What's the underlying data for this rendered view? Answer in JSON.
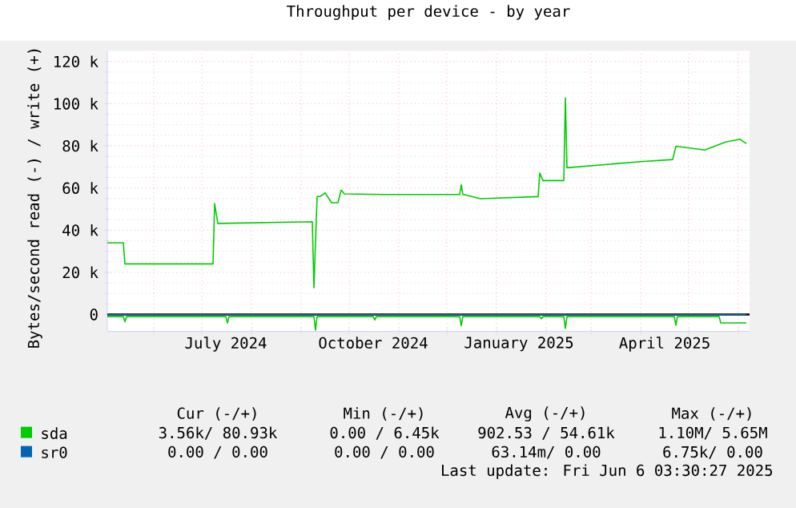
{
  "chart_data": {
    "type": "line",
    "title": "Throughput per device - by year",
    "ylabel": "Bytes/second read (-) / write (+)",
    "xlim": [
      "2024-05-03",
      "2025-06-08"
    ],
    "ylim": [
      -8000,
      125000
    ],
    "xticks": [
      {
        "value": "2024-06-01",
        "label": null
      },
      {
        "value": "2024-07-01",
        "label": null
      },
      {
        "value": "2024-07-16",
        "label": "July 2024"
      },
      {
        "value": "2024-08-01",
        "label": null
      },
      {
        "value": "2024-09-01",
        "label": null
      },
      {
        "value": "2024-10-01",
        "label": null
      },
      {
        "value": "2024-10-16",
        "label": "October 2024"
      },
      {
        "value": "2024-11-01",
        "label": null
      },
      {
        "value": "2024-12-01",
        "label": null
      },
      {
        "value": "2025-01-01",
        "label": null
      },
      {
        "value": "2025-01-15",
        "label": "January 2025"
      },
      {
        "value": "2025-02-01",
        "label": null
      },
      {
        "value": "2025-03-01",
        "label": null
      },
      {
        "value": "2025-04-01",
        "label": null
      },
      {
        "value": "2025-04-16",
        "label": "April 2025"
      },
      {
        "value": "2025-05-01",
        "label": null
      },
      {
        "value": "2025-06-01",
        "label": null
      }
    ],
    "yticks": [
      0,
      {
        "value": 20000,
        "label": "20 k"
      },
      {
        "value": 40000,
        "label": "40 k"
      },
      {
        "value": 60000,
        "label": "60 k"
      },
      {
        "value": 80000,
        "label": "80 k"
      },
      {
        "value": 100000,
        "label": "100 k"
      },
      {
        "value": 120000,
        "label": "120 k"
      }
    ],
    "grid": true,
    "legend": "bottom",
    "marker": "none",
    "line_style": "solid",
    "ref_lines": [
      {
        "axis": "y",
        "value": 0,
        "color": "#000000"
      }
    ],
    "series": [
      {
        "name": "sda",
        "color": "#00cc00",
        "x": [
          "2024-05-03",
          "2024-05-13",
          "2024-05-14",
          "2024-07-08",
          "2024-07-09",
          "2024-07-11",
          "2024-09-08",
          "2024-09-09",
          "2024-09-11",
          "2024-09-13",
          "2024-09-16",
          "2024-09-20",
          "2024-09-24",
          "2024-09-26",
          "2024-09-28",
          "2024-10-23",
          "2024-12-09",
          "2024-12-10",
          "2024-12-11",
          "2024-12-22",
          "2025-01-27",
          "2025-01-28",
          "2025-01-30",
          "2025-02-12",
          "2025-02-13",
          "2025-02-14",
          "2025-04-01",
          "2025-04-21",
          "2025-04-23",
          "2025-05-11",
          "2025-05-24",
          "2025-06-02",
          "2025-06-06"
        ],
        "values": [
          34000,
          34000,
          24000,
          24000,
          52600,
          43200,
          44000,
          12700,
          55900,
          56000,
          57700,
          53000,
          53000,
          59000,
          57200,
          56900,
          56900,
          61500,
          57000,
          54900,
          55900,
          67100,
          63500,
          63500,
          102700,
          69600,
          72500,
          73500,
          79800,
          78000,
          81800,
          83100,
          81100
        ]
      },
      {
        "color": "#00cc00",
        "x": [
          "2024-05-03",
          "2024-05-13",
          "2024-05-14",
          "2024-05-15",
          "2024-07-16",
          "2024-07-17",
          "2024-07-18",
          "2024-09-09",
          "2024-09-10",
          "2024-09-11",
          "2024-10-16",
          "2024-10-17",
          "2024-10-18",
          "2024-12-09",
          "2024-12-10",
          "2024-12-11",
          "2025-01-28",
          "2025-01-29",
          "2025-01-30",
          "2025-02-12",
          "2025-02-13",
          "2025-02-14",
          "2025-04-22",
          "2025-04-23",
          "2025-04-24",
          "2025-05-20",
          "2025-05-21",
          "2025-06-06"
        ],
        "values": [
          -1000,
          -1000,
          -3400,
          -1000,
          -1000,
          -4000,
          -1000,
          -1000,
          -7400,
          -1000,
          -1000,
          -2600,
          -1000,
          -1000,
          -5300,
          -1000,
          -1000,
          -2000,
          -1000,
          -1000,
          -6600,
          -1000,
          -1000,
          -5100,
          -1000,
          -1000,
          -4000,
          -4000
        ]
      },
      {
        "name": "sr0",
        "color": "#0066b3",
        "x": [
          "2024-05-03",
          "2025-06-06"
        ],
        "values": [
          0,
          0
        ]
      }
    ],
    "annotations": [
      "Cur (-/+)",
      "Min (-/+)",
      "Avg (-/+)",
      "Max (-/+)",
      "3.56k/ 80.93k",
      "0.00 / 6.45k",
      "902.53 / 54.61k",
      "1.10M/ 5.65M",
      "0.00 / 0.00",
      "0.00 / 0.00",
      "63.14m/ 0.00",
      "6.75k/ 0.00",
      "Last update: Fri Jun 6 03:30:27 2025"
    ]
  }
}
